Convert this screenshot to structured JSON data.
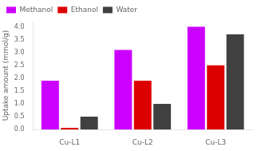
{
  "chart_data": {
    "type": "bar",
    "categories": [
      "Cu-L1",
      "Cu-L2",
      "Cu-L3"
    ],
    "series": [
      {
        "name": "Methanol",
        "color": "#CC00FF",
        "values": [
          1.9,
          3.1,
          4.0
        ]
      },
      {
        "name": "Ethanol",
        "color": "#DD0000",
        "values": [
          0.07,
          1.9,
          2.5
        ]
      },
      {
        "name": "Water",
        "color": "#404040",
        "values": [
          0.5,
          1.0,
          3.7
        ]
      }
    ],
    "ylabel": "Uptake amount (mmol/g)",
    "ylim": [
      0,
      4.2
    ],
    "yticks": [
      {
        "value": 0.0,
        "label": "0.0"
      },
      0.5,
      {
        "value": 1.0,
        "label": "1.0"
      },
      1.5,
      {
        "value": 2.0,
        "label": "2.0"
      },
      2.5,
      {
        "value": 3.0,
        "label": "3.0"
      },
      3.5,
      {
        "value": 4.0,
        "label": "4.0"
      }
    ],
    "grid": false,
    "legend": "upper left"
  }
}
